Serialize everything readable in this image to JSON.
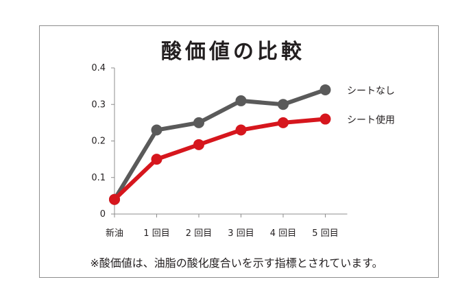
{
  "chart_data": {
    "type": "line",
    "title": "酸価値の比較",
    "categories": [
      "新油",
      "1回目",
      "2回目",
      "3回目",
      "4回目",
      "5回目"
    ],
    "x_tick_labels": [
      "新油",
      "1 回目",
      "2 回目",
      "3 回目",
      "4 回目",
      "5 回目"
    ],
    "y_ticks": [
      "0",
      "0.1",
      "0.2",
      "0.3",
      "0.4"
    ],
    "ylim": [
      0,
      0.4
    ],
    "grid": false,
    "legend_position": "right",
    "series": [
      {
        "name": "シートなし",
        "values": [
          0.04,
          0.23,
          0.25,
          0.31,
          0.3,
          0.34
        ],
        "color": "#5a5a5a"
      },
      {
        "name": "シート使用",
        "values": [
          0.04,
          0.15,
          0.19,
          0.23,
          0.25,
          0.26
        ],
        "color": "#d6161d"
      }
    ],
    "footnote": "※酸価値は、油脂の酸化度合いを示す指標とされています。"
  }
}
